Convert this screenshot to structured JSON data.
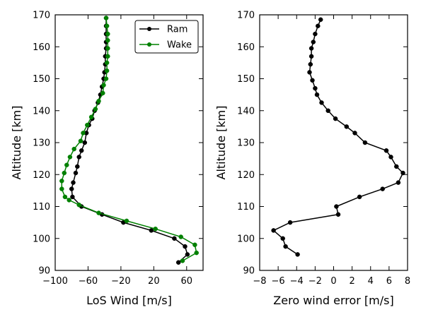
{
  "chart_data": [
    {
      "type": "line",
      "xlabel": "LoS Wind [m/s]",
      "ylabel": "Altitude [km]",
      "xlim": [
        -100,
        80
      ],
      "ylim": [
        90,
        170
      ],
      "xticks": [
        -100,
        -60,
        -20,
        20,
        60
      ],
      "xtick_labels": [
        "−100",
        "−60",
        "−20",
        "20",
        "60"
      ],
      "yticks": [
        90,
        100,
        110,
        120,
        130,
        140,
        150,
        160,
        170
      ],
      "ytick_labels": [
        "90",
        "100",
        "110",
        "120",
        "130",
        "140",
        "150",
        "160",
        "170"
      ],
      "grid": false,
      "legend": "top-right",
      "series": [
        {
          "name": "Ram",
          "color": "#000000",
          "points": [
            [
              50,
              92.5
            ],
            [
              61,
              95
            ],
            [
              58,
              97.5
            ],
            [
              45,
              100
            ],
            [
              17,
              102.5
            ],
            [
              -17,
              105
            ],
            [
              -43,
              107.5
            ],
            [
              -68,
              110
            ],
            [
              -79,
              113
            ],
            [
              -80,
              115.5
            ],
            [
              -78,
              117.5
            ],
            [
              -75,
              120.5
            ],
            [
              -73,
              122.5
            ],
            [
              -71,
              125.5
            ],
            [
              -68,
              127.5
            ],
            [
              -64,
              130
            ],
            [
              -62,
              133
            ],
            [
              -59,
              135.5
            ],
            [
              -55,
              137.5
            ],
            [
              -52,
              140
            ],
            [
              -48,
              142.5
            ],
            [
              -45,
              145
            ],
            [
              -43,
              147.5
            ],
            [
              -41,
              150
            ],
            [
              -40,
              152
            ],
            [
              -39,
              154.5
            ],
            [
              -39,
              157
            ],
            [
              -38,
              159.5
            ],
            [
              -38,
              161.5
            ],
            [
              -38,
              164
            ],
            [
              -38,
              166.5
            ],
            [
              -38,
              169
            ]
          ]
        },
        {
          "name": "Wake",
          "color": "#008000",
          "points": [
            [
              55,
              93
            ],
            [
              72,
              95.5
            ],
            [
              70,
              98
            ],
            [
              53,
              100.5
            ],
            [
              22,
              103
            ],
            [
              -13,
              105.5
            ],
            [
              -47,
              108
            ],
            [
              -71,
              110.5
            ],
            [
              -83,
              112
            ],
            [
              -88,
              113
            ],
            [
              -92,
              115.5
            ],
            [
              -92,
              118
            ],
            [
              -89,
              120.5
            ],
            [
              -86,
              123
            ],
            [
              -82,
              125.5
            ],
            [
              -77,
              128
            ],
            [
              -69,
              130.5
            ],
            [
              -66,
              133
            ],
            [
              -61,
              135.5
            ],
            [
              -56,
              138
            ],
            [
              -51,
              140.5
            ],
            [
              -47,
              143
            ],
            [
              -42,
              145.5
            ],
            [
              -41,
              148
            ],
            [
              -38,
              150
            ],
            [
              -37,
              152.5
            ],
            [
              -37,
              155
            ],
            [
              -36,
              157
            ],
            [
              -36,
              159.5
            ],
            [
              -36,
              162
            ],
            [
              -36,
              164
            ],
            [
              -37,
              166.5
            ],
            [
              -38,
              169
            ]
          ]
        }
      ]
    },
    {
      "type": "line",
      "xlabel": "Zero wind error [m/s]",
      "ylabel": "Altitude [km]",
      "xlim": [
        -8,
        8
      ],
      "ylim": [
        90,
        170
      ],
      "xticks": [
        -8,
        -6,
        -4,
        -2,
        0,
        2,
        4,
        6,
        8
      ],
      "xtick_labels": [
        "−8",
        "−6",
        "−4",
        "−2",
        "0",
        "2",
        "4",
        "6",
        "8"
      ],
      "yticks": [
        90,
        100,
        110,
        120,
        130,
        140,
        150,
        160,
        170
      ],
      "ytick_labels": [
        "90",
        "100",
        "110",
        "120",
        "130",
        "140",
        "150",
        "160",
        "170"
      ],
      "grid": false,
      "series": [
        {
          "color": "#000000",
          "points": [
            [
              -3.9,
              95
            ],
            [
              -5.2,
              97.5
            ],
            [
              -5.5,
              100
            ],
            [
              -6.5,
              102.5
            ],
            [
              -4.7,
              105
            ],
            [
              0.5,
              107.5
            ],
            [
              0.3,
              110
            ],
            [
              2.8,
              113
            ],
            [
              5.3,
              115.5
            ],
            [
              7.0,
              117.5
            ],
            [
              7.5,
              120.5
            ],
            [
              6.8,
              122.5
            ],
            [
              6.2,
              125.5
            ],
            [
              5.7,
              127.5
            ],
            [
              3.4,
              130
            ],
            [
              2.3,
              133
            ],
            [
              1.4,
              135
            ],
            [
              0.2,
              137.5
            ],
            [
              -0.6,
              140
            ],
            [
              -1.3,
              142.5
            ],
            [
              -1.8,
              145
            ],
            [
              -2.0,
              147
            ],
            [
              -2.3,
              149.5
            ],
            [
              -2.6,
              152
            ],
            [
              -2.5,
              154.5
            ],
            [
              -2.4,
              157
            ],
            [
              -2.4,
              159.5
            ],
            [
              -2.2,
              161.5
            ],
            [
              -2.0,
              164
            ],
            [
              -1.7,
              166.5
            ],
            [
              -1.4,
              168.5
            ]
          ]
        }
      ]
    }
  ]
}
